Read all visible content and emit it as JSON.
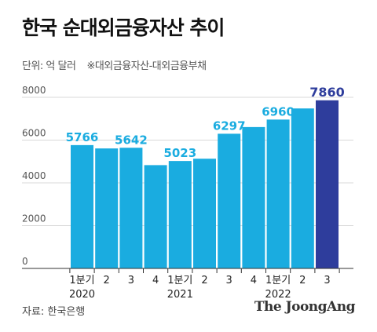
{
  "title": "한국 순대외금융자산 추이",
  "unit_label": "단위: 억 달러",
  "note": "※대외금융자산-대외금융부채",
  "source": "자료: 한국은행",
  "brand": "The JoongAng",
  "colors": {
    "bar": "#1aace0",
    "highlight": "#2e3d9c",
    "label": "#1aace0",
    "highlight_label": "#2e3d9c",
    "grid": "#d8d8d8"
  },
  "chart_data": {
    "type": "bar",
    "categories": [
      "1분기",
      "2",
      "3",
      "4",
      "1분기",
      "2",
      "3",
      "4",
      "1분기",
      "2",
      "3"
    ],
    "years": [
      {
        "label": "2020",
        "under_index": 0
      },
      {
        "label": "2021",
        "under_index": 4
      },
      {
        "label": "2022",
        "under_index": 8
      }
    ],
    "values": [
      5766,
      5610,
      5642,
      4830,
      5023,
      5130,
      6297,
      6610,
      6960,
      7480,
      7860
    ],
    "data_labels": [
      "5766",
      null,
      "5642",
      null,
      "5023",
      null,
      "6297",
      null,
      "6960",
      null,
      "7860"
    ],
    "highlight_index": 10,
    "yticks": [
      0,
      2000,
      4000,
      6000,
      8000
    ],
    "ylim": [
      0,
      8000
    ]
  }
}
